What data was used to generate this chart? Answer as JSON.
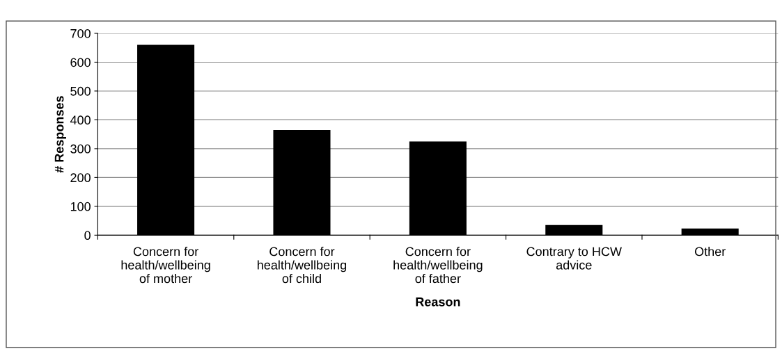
{
  "chart_data": {
    "type": "bar",
    "xlabel": "Reason",
    "ylabel": "# Responses",
    "categories": [
      "Concern for\nhealth/wellbeing\nof mother",
      "Concern for\nhealth/wellbeing\nof child",
      "Concern for\nhealth/wellbeing\nof father",
      "Contrary to HCW\nadvice",
      "Other"
    ],
    "values": [
      660,
      365,
      325,
      35,
      23
    ],
    "color": "#000000",
    "ylim": [
      0,
      700
    ],
    "yticks": [
      0,
      100,
      200,
      300,
      400,
      500,
      600,
      700
    ],
    "grid": "y",
    "legend": false
  }
}
